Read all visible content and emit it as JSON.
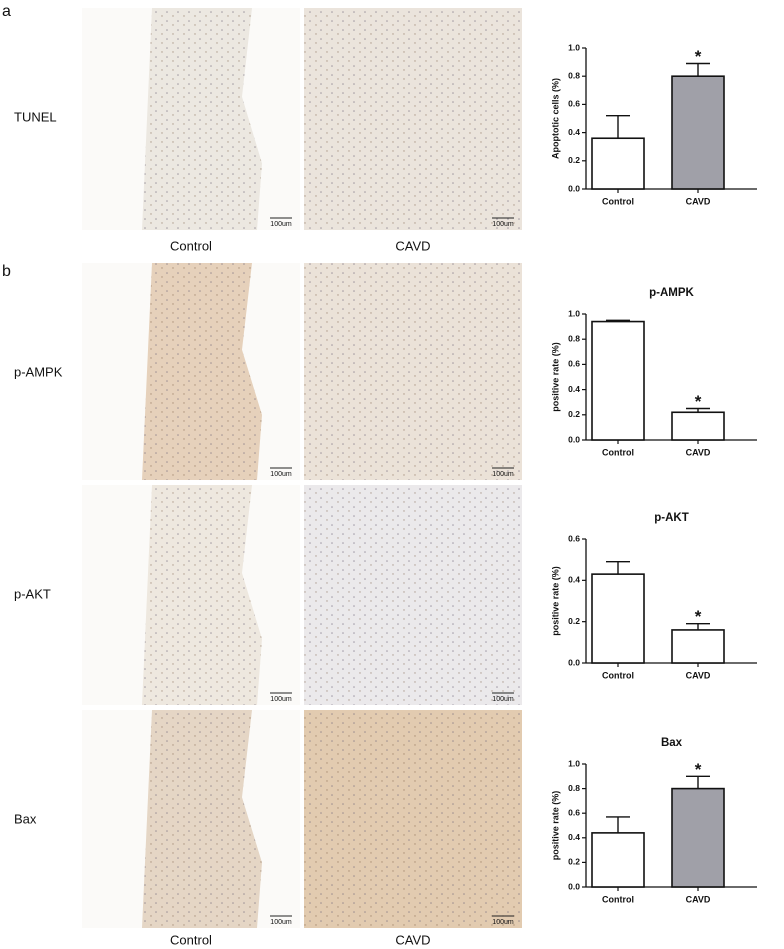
{
  "panel_labels": [
    "a",
    "b"
  ],
  "row_labels": [
    "TUNEL",
    "p-AMPK",
    "p-AKT",
    "Bax"
  ],
  "column_labels_a": [
    "Control",
    "CAVD"
  ],
  "column_labels_b": [
    "Control",
    "CAVD"
  ],
  "scale_bar_label": "100um",
  "chart_data": [
    {
      "type": "bar",
      "ylabel": "Apoptotic cells (%)",
      "categories": [
        "Control",
        "CAVD"
      ],
      "values": [
        0.36,
        0.8
      ],
      "errors": [
        0.16,
        0.09
      ],
      "colors": [
        "#ffffff",
        "#a0a0a8"
      ],
      "annotation": "*",
      "ylim": [
        0,
        1
      ],
      "yticks": [
        {
          "value": 0,
          "label": "0.0"
        },
        0.2,
        0.4,
        0.6,
        0.8,
        {
          "value": 1,
          "label": "1.0"
        }
      ]
    },
    {
      "type": "bar",
      "title": "p-AMPK",
      "ylabel": "positive rate (%)",
      "categories": [
        "Control",
        "CAVD"
      ],
      "values": [
        0.94,
        0.22
      ],
      "errors": [
        0.01,
        0.03
      ],
      "colors": [
        "#ffffff",
        "#ffffff"
      ],
      "annotation": "*",
      "ylim": [
        0,
        1
      ],
      "yticks": [
        {
          "value": 0,
          "label": "0.0"
        },
        0.2,
        0.4,
        0.6,
        0.8,
        {
          "value": 1,
          "label": "1.0"
        }
      ]
    },
    {
      "type": "bar",
      "title": "p-AKT",
      "ylabel": "positive rate (%)",
      "categories": [
        "Control",
        "CAVD"
      ],
      "values": [
        0.43,
        0.16
      ],
      "errors": [
        0.06,
        0.03
      ],
      "colors": [
        "#ffffff",
        "#ffffff"
      ],
      "annotation": "*",
      "ylim": [
        0,
        0.6
      ],
      "yticks": [
        {
          "value": 0,
          "label": "0.0"
        },
        0.2,
        0.4,
        0.6
      ]
    },
    {
      "type": "bar",
      "title": "Bax",
      "ylabel": "positive rate (%)",
      "categories": [
        "Control",
        "CAVD"
      ],
      "values": [
        0.44,
        0.8
      ],
      "errors": [
        0.13,
        0.1
      ],
      "colors": [
        "#ffffff",
        "#a0a0a8"
      ],
      "annotation": "*",
      "ylim": [
        0,
        1
      ],
      "yticks": [
        {
          "value": 0,
          "label": "0.0"
        },
        0.2,
        0.4,
        0.6,
        0.8,
        {
          "value": 1,
          "label": "1.0"
        }
      ]
    }
  ]
}
